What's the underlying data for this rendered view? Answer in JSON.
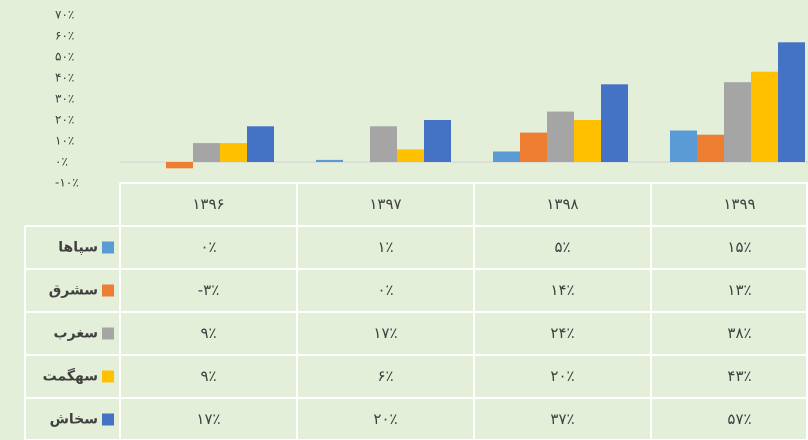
{
  "chart_data": {
    "type": "bar",
    "categories": [
      "۱۳۹۶",
      "۱۳۹۷",
      "۱۳۹۸",
      "۱۳۹۹"
    ],
    "ylim": [
      -10,
      70
    ],
    "yticks": [
      {
        "value": -10,
        "label": "-۱۰٪"
      },
      {
        "value": 0,
        "label": "۰٪"
      },
      {
        "value": 10,
        "label": "۱۰٪"
      },
      {
        "value": 20,
        "label": "۲۰٪"
      },
      {
        "value": 30,
        "label": "۳۰٪"
      },
      {
        "value": 40,
        "label": "۴۰٪"
      },
      {
        "value": 50,
        "label": "۵۰٪"
      },
      {
        "value": 60,
        "label": "۶۰٪"
      },
      {
        "value": 70,
        "label": "۷۰٪"
      }
    ],
    "series": [
      {
        "name": "سپاها",
        "color": "#5b9bd5",
        "values": [
          0,
          1,
          5,
          15
        ],
        "value_labels": [
          "۰٪",
          "۱٪",
          "۵٪",
          "۱۵٪"
        ]
      },
      {
        "name": "سشرق",
        "color": "#ed7d31",
        "values": [
          -3,
          0,
          14,
          13
        ],
        "value_labels": [
          "-۳٪",
          "۰٪",
          "۱۴٪",
          "۱۳٪"
        ]
      },
      {
        "name": "سغرب",
        "color": "#a5a5a5",
        "values": [
          9,
          17,
          24,
          38
        ],
        "value_labels": [
          "۹٪",
          "۱۷٪",
          "۲۴٪",
          "۳۸٪"
        ]
      },
      {
        "name": "سهگمت",
        "color": "#ffc000",
        "values": [
          9,
          6,
          20,
          43
        ],
        "value_labels": [
          "۹٪",
          "۶٪",
          "۲۰٪",
          "۴۳٪"
        ]
      },
      {
        "name": "سخاش",
        "color": "#4472c4",
        "values": [
          17,
          20,
          37,
          57
        ],
        "value_labels": [
          "۱۷٪",
          "۲۰٪",
          "۳۷٪",
          "۵۷٪"
        ]
      }
    ]
  }
}
